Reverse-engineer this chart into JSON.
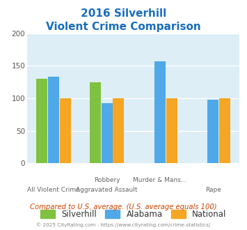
{
  "title_line1": "2016 Silverhill",
  "title_line2": "Violent Crime Comparison",
  "title_color": "#1a6ebd",
  "title_fontsize": 11,
  "plot_bg_color": "#ddeef6",
  "fig_bg_color": "#ffffff",
  "ylim": [
    0,
    200
  ],
  "yticks": [
    0,
    50,
    100,
    150,
    200
  ],
  "bar_width": 0.22,
  "silverhill_color": "#7fc241",
  "alabama_color": "#4fa8e8",
  "national_color": "#f5a623",
  "group_data": [
    [
      130,
      133,
      100
    ],
    [
      125,
      93,
      100
    ],
    [
      null,
      157,
      100
    ],
    [
      null,
      98,
      100
    ]
  ],
  "top_labels": [
    "",
    "Robbery",
    "Murder & Mans...",
    ""
  ],
  "bottom_labels": [
    "All Violent Crime",
    "Aggravated Assault",
    "",
    "Rape"
  ],
  "subtitle_note": "Compared to U.S. average. (U.S. average equals 100)",
  "subtitle_note_color": "#cc4400",
  "footer": "© 2025 CityRating.com - https://www.cityrating.com/crime-statistics/",
  "footer_color": "#888888",
  "legend_labels": [
    "Silverhill",
    "Alabama",
    "National"
  ]
}
